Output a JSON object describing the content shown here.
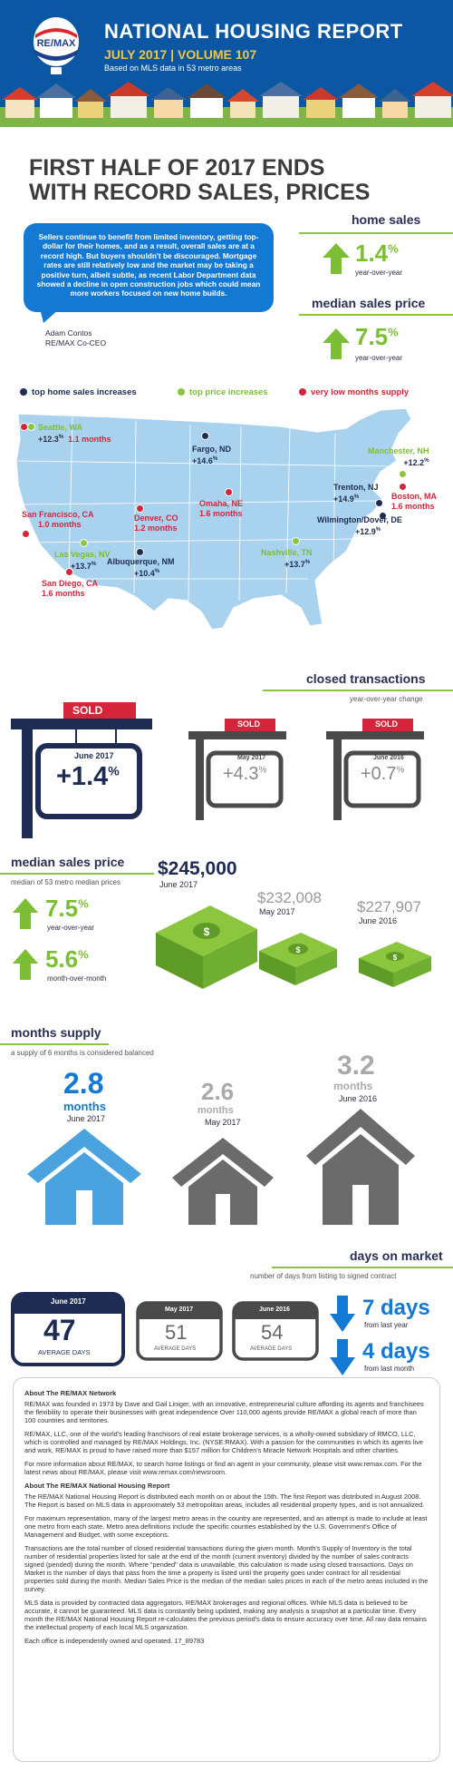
{
  "header": {
    "title": "NATIONAL HOUSING REPORT",
    "edition": "JULY 2017  |  VOLUME 107",
    "basis": "Based on MLS data in 53 metro areas",
    "logo_text": "RE/MAX"
  },
  "headline": {
    "line1": "FIRST HALF OF 2017 ENDS",
    "line2": "WITH RECORD SALES, PRICES"
  },
  "quote": {
    "text": "Sellers continue to benefit from limited inventory, getting top-dollar for their homes, and as a result, overall sales are at a record high. But buyers shouldn't be discouraged. Mortgage rates are still relatively low and the market may be taking a positive turn, albeit subtle, as recent Labor Department data showed a decline in open construction jobs which could mean more workers focused on new home builds.",
    "author": "Adam Contos",
    "author_title": "RE/MAX Co-CEO"
  },
  "home_sales": {
    "label": "home sales",
    "value": "1.4",
    "unit": "%",
    "note": "year-over-year"
  },
  "median_price_top": {
    "label": "median sales price",
    "value": "7.5",
    "unit": "%",
    "note": "year-over-year"
  },
  "legend": {
    "a": "top home sales increases",
    "b": "top price increases",
    "c": "very low months supply",
    "colors": {
      "navy": "#1e2b52",
      "green": "#8cc63f",
      "red": "#d5253a"
    }
  },
  "map": {
    "seattle": {
      "name": "Seattle, WA",
      "v1": "+12.3",
      "u": "%",
      "v2": "1.1 months"
    },
    "fargo": {
      "name": "Fargo, ND",
      "v": "+14.6",
      "u": "%"
    },
    "manchester": {
      "name": "Manchester, NH",
      "v": "+12.2",
      "u": "%"
    },
    "trenton": {
      "name": "Trenton, NJ",
      "v": "+14.9",
      "u": "%"
    },
    "boston": {
      "name": "Boston, MA",
      "v": "1.6 months"
    },
    "wilmington": {
      "name": "Wilmington/Dover, DE",
      "v": "+12.9",
      "u": "%"
    },
    "sf": {
      "name": "San Francisco, CA",
      "v": "1.0 months"
    },
    "denver": {
      "name": "Denver, CO",
      "v": "1.2 months"
    },
    "omaha": {
      "name": "Omaha, NE",
      "v": "1.6 months"
    },
    "lasvegas": {
      "name": "Las Vegas, NV",
      "v": "+13.7",
      "u": "%"
    },
    "sandiego": {
      "name": "San Diego, CA",
      "v": "1.6 months"
    },
    "albuquerque": {
      "name": "Albuquerque, NM",
      "v": "+10.4",
      "u": "%"
    },
    "nashville": {
      "name": "Nashville, TN",
      "v": "+13.7",
      "u": "%"
    }
  },
  "closed": {
    "label": "closed transactions",
    "note": "year-over-year change",
    "sold": "SOLD",
    "signs": [
      {
        "period": "June 2017",
        "value": "+1.4",
        "unit": "%"
      },
      {
        "period": "May 2017",
        "value": "+4.3",
        "unit": "%"
      },
      {
        "period": "June 2016",
        "value": "+0.7",
        "unit": "%"
      }
    ]
  },
  "median": {
    "label": "median sales price",
    "note": "median of 53 metro median prices",
    "yoy": {
      "value": "7.5",
      "unit": "%",
      "note": "year-over-year"
    },
    "mom": {
      "value": "5.6",
      "unit": "%",
      "note": "month-over-month"
    },
    "prices": [
      {
        "value": "$245,000",
        "period": "June 2017"
      },
      {
        "value": "$232,008",
        "period": "May 2017"
      },
      {
        "value": "$227,907",
        "period": "June 2016"
      }
    ]
  },
  "supply": {
    "label": "months supply",
    "note": "a supply of 6 months is considered balanced",
    "unit": "months",
    "items": [
      {
        "value": "2.8",
        "period": "June 2017"
      },
      {
        "value": "2.6",
        "period": "May 2017"
      },
      {
        "value": "3.2",
        "period": "June 2016"
      }
    ]
  },
  "dom": {
    "label": "days on market",
    "note": "number of days from listing to signed contract",
    "items": [
      {
        "period": "June 2017",
        "value": "47",
        "caption": "AVERAGE DAYS"
      },
      {
        "period": "May 2017",
        "value": "51",
        "caption": "AVERAGE DAYS"
      },
      {
        "period": "June 2016",
        "value": "54",
        "caption": "AVERAGE DAYS"
      }
    ],
    "change1": {
      "value": "7 days",
      "note": "from last year"
    },
    "change2": {
      "value": "4 days",
      "note": "from last month"
    }
  },
  "about": {
    "h1": "About The RE/MAX Network",
    "p1": "RE/MAX was founded in 1973 by Dave and Gail Liniger, with an innovative, entrepreneurial culture affording its agents and franchisees the flexibility to operate their businesses with great independence Over 110,000 agents provide RE/MAX a global reach of more than 100 countries and territories.",
    "p2": "RE/MAX, LLC, one of the world's leading franchisors of real estate brokerage services, is a wholly-owned subsidiary of RMCO, LLC, which is controlled and managed by RE/MAX Holdings, Inc. (NYSE:RMAX). With a passion for the communities in which its agents live and work, RE/MAX is proud to have raised more than $157 million for Children's Miracle Network Hospitals and other charities.",
    "p3": "For more information about RE/MAX, to search home listings or find an agent in your community, please visit www.remax.com. For the latest news about RE/MAX, please visit www.remax.com/newsroom.",
    "h2": "About The RE/MAX National Housing Report",
    "p4": "The RE/MAX National Housing Report is distributed each month on or about the 15th. The first Report was distributed in August 2008. The Report is based on MLS data in approximately 53 metropolitan areas, includes all residential property types, and is not annualized.",
    "p5": "For maximum representation, many of the largest metro areas in the country are represented, and an attempt is made to include at least one metro from each state. Metro area definitions include the specific counties established by the U.S. Government's Office of Management and Budget, with some exceptions.",
    "p6": "Transactions are the total number of closed residential transactions during the given month. Month's Supply of Inventory is the total number of residential properties listed for sale at the end of the month (current inventory) divided by the number of sales contracts signed (pended) during the month. Where \"pended\" data is unavailable, this calculation is made using closed transactions. Days on Market is the number of days that pass from the time a property is listed until the property goes under contract for all residential properties sold during the month. Median Sales Price is the median of the median sales prices in each of the metro areas included in the survey.",
    "p7": "MLS data is provided by contracted data aggregators, RE/MAX brokerages and regional offices. While MLS data is believed to be accurate, it cannot be guaranteed. MLS data is constantly being updated, making any analysis a snapshot at a particular time. Every month the RE/MAX National Housing Report re-calculates the previous period's data to ensure accuracy over time. All raw data remains the intellectual property of each local MLS organization.",
    "p8": "Each office is independently owned and operated. 17_89783"
  }
}
